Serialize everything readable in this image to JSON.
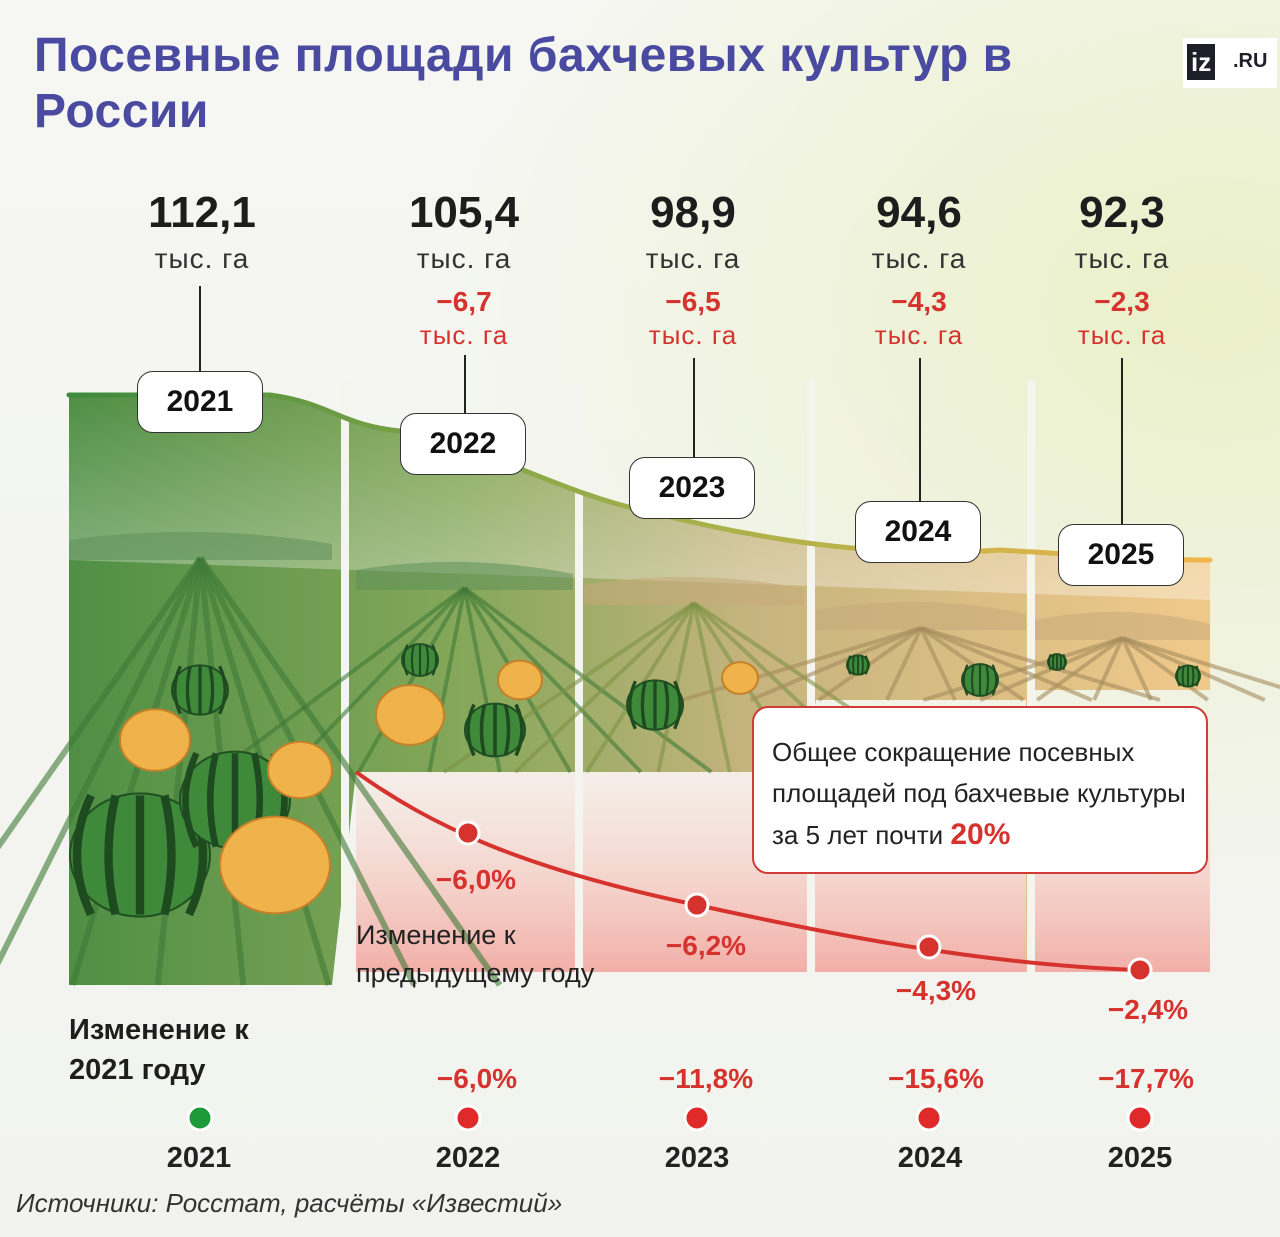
{
  "title": "Посевные площади бахчевых культур в России",
  "logo": {
    "mark": "iz",
    "suffix": ".RU"
  },
  "colors": {
    "title": "#4a4aa0",
    "negative": "#d6322e",
    "start_dot": "#1f9a3a",
    "field_green": "#4f8f45",
    "dry_field": "#d8b58a"
  },
  "chart_data": {
    "type": "area",
    "years": [
      "2021",
      "2022",
      "2023",
      "2024",
      "2025"
    ],
    "values": [
      "112,1",
      "105,4",
      "98,9",
      "94,6",
      "92,3"
    ],
    "numeric_values": [
      112.1,
      105.4,
      98.9,
      94.6,
      92.3
    ],
    "unit": "тыс. га",
    "abs_change": [
      "",
      "−6,7",
      "−6,5",
      "−4,3",
      "−2,3"
    ],
    "abs_change_unit": "тыс. га",
    "yoy_label": "Изменение к предыдущему году",
    "yoy_change": [
      "",
      "−6,0%",
      "−6,2%",
      "−4,3%",
      "−2,4%"
    ],
    "yoy_numeric": [
      0,
      -6.0,
      -6.2,
      -4.3,
      -2.4
    ],
    "cum_label": "Изменение к 2021 году",
    "cum_change": [
      "",
      "−6,0%",
      "−11,8%",
      "−15,6%",
      "−17,7%"
    ],
    "cum_numeric": [
      0,
      -6.0,
      -11.8,
      -15.6,
      -17.7
    ],
    "icons": [
      "watermelon-field-icon",
      "watermelon-field-icon",
      "watermelon-field-icon",
      "watermelon-field-icon",
      "watermelon-field-icon"
    ]
  },
  "note": {
    "text": "Общее сокращение посевных площадей под бахчевые культуры за 5 лет почти",
    "highlight": "20%"
  },
  "source": "Источники: Росстат, расчёты «Известий»"
}
